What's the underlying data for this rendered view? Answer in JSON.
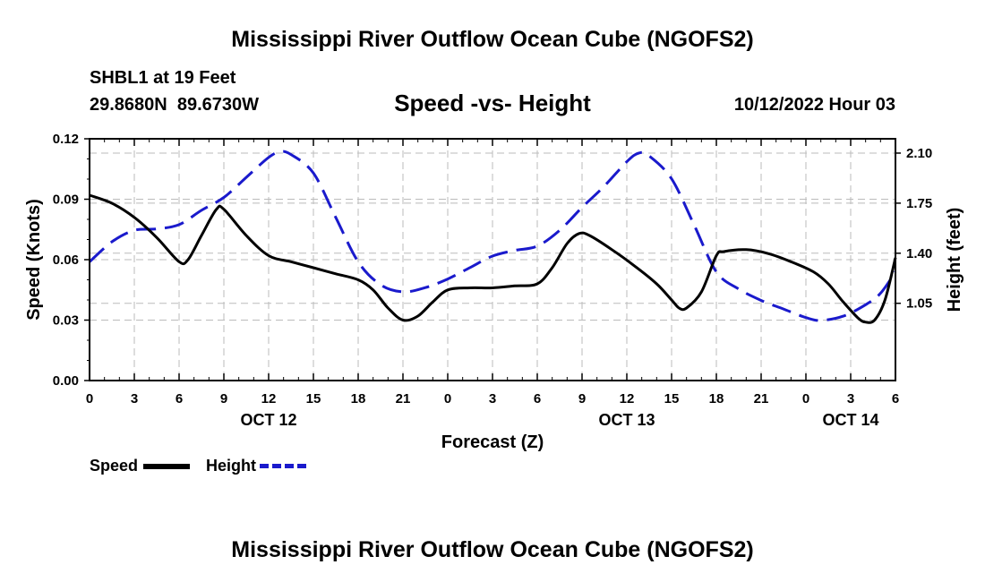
{
  "page": {
    "title_top": "Mississippi River Outflow Ocean Cube (NGOFS2)",
    "title_bottom": "Mississippi River Outflow Ocean Cube (NGOFS2)",
    "station_line": "SHBL1 at 19 Feet",
    "coords_line": "29.8680N  89.6730W",
    "plot_title": "Speed -vs- Height",
    "datetime": "10/12/2022 Hour 03"
  },
  "legend": {
    "speed_label": "Speed",
    "height_label": "Height"
  },
  "colors": {
    "speed": "#000000",
    "height": "#1a1acc",
    "grid": "#bbbbbb"
  },
  "chart_data": {
    "type": "line",
    "xlabel": "Forecast (Z)",
    "ylabel_left": "Speed (Knots)",
    "ylabel_right": "Height (feet)",
    "x_range_hours": [
      0,
      54
    ],
    "x_ticks": [
      {
        "h": 0,
        "label": "0"
      },
      {
        "h": 3,
        "label": "3"
      },
      {
        "h": 6,
        "label": "6"
      },
      {
        "h": 9,
        "label": "9"
      },
      {
        "h": 12,
        "label": "12"
      },
      {
        "h": 15,
        "label": "15"
      },
      {
        "h": 18,
        "label": "18"
      },
      {
        "h": 21,
        "label": "21"
      },
      {
        "h": 24,
        "label": "0"
      },
      {
        "h": 27,
        "label": "3"
      },
      {
        "h": 30,
        "label": "6"
      },
      {
        "h": 33,
        "label": "9"
      },
      {
        "h": 36,
        "label": "12"
      },
      {
        "h": 39,
        "label": "15"
      },
      {
        "h": 42,
        "label": "18"
      },
      {
        "h": 45,
        "label": "21"
      },
      {
        "h": 48,
        "label": "0"
      },
      {
        "h": 51,
        "label": "3"
      },
      {
        "h": 54,
        "label": "6"
      }
    ],
    "date_labels": [
      {
        "h": 12,
        "label": "OCT 12"
      },
      {
        "h": 36,
        "label": "OCT 13"
      },
      {
        "h": 51,
        "label": "OCT 14"
      }
    ],
    "y_left": {
      "range": [
        0,
        0.12
      ],
      "ticks": [
        "0.00",
        "0.03",
        "0.06",
        "0.09",
        "0.12"
      ]
    },
    "y_right": {
      "range": [
        0.51,
        2.2
      ],
      "ticks": [
        "1.05",
        "1.40",
        "1.75",
        "2.10"
      ]
    },
    "series": [
      {
        "name": "Speed",
        "axis": "left",
        "style": "solid",
        "points": [
          [
            0,
            0.092
          ],
          [
            1.5,
            0.088
          ],
          [
            3,
            0.081
          ],
          [
            4.5,
            0.071
          ],
          [
            6,
            0.059
          ],
          [
            6.6,
            0.06
          ],
          [
            7.5,
            0.072
          ],
          [
            8.5,
            0.085
          ],
          [
            9,
            0.085
          ],
          [
            10.5,
            0.072
          ],
          [
            12,
            0.062
          ],
          [
            13.5,
            0.059
          ],
          [
            15,
            0.056
          ],
          [
            16.5,
            0.053
          ],
          [
            18,
            0.05
          ],
          [
            19,
            0.045
          ],
          [
            20,
            0.036
          ],
          [
            21,
            0.03
          ],
          [
            22,
            0.032
          ],
          [
            23,
            0.039
          ],
          [
            24,
            0.045
          ],
          [
            25.5,
            0.046
          ],
          [
            27,
            0.046
          ],
          [
            28.5,
            0.047
          ],
          [
            30,
            0.048
          ],
          [
            31,
            0.056
          ],
          [
            32,
            0.068
          ],
          [
            32.8,
            0.073
          ],
          [
            33.5,
            0.072
          ],
          [
            35,
            0.065
          ],
          [
            36.5,
            0.057
          ],
          [
            38,
            0.048
          ],
          [
            39,
            0.04
          ],
          [
            39.5,
            0.036
          ],
          [
            40,
            0.036
          ],
          [
            41,
            0.044
          ],
          [
            42,
            0.062
          ],
          [
            42.5,
            0.064
          ],
          [
            44,
            0.065
          ],
          [
            45.5,
            0.063
          ],
          [
            47,
            0.059
          ],
          [
            48.5,
            0.054
          ],
          [
            49.5,
            0.048
          ],
          [
            50.5,
            0.039
          ],
          [
            51.5,
            0.031
          ],
          [
            52,
            0.029
          ],
          [
            52.6,
            0.03
          ],
          [
            53.3,
            0.04
          ],
          [
            54,
            0.061
          ]
        ]
      },
      {
        "name": "Height",
        "axis": "right",
        "style": "dashed",
        "points": [
          [
            0,
            1.34
          ],
          [
            1.5,
            1.48
          ],
          [
            3,
            1.56
          ],
          [
            4.5,
            1.57
          ],
          [
            6,
            1.6
          ],
          [
            7.5,
            1.7
          ],
          [
            9,
            1.79
          ],
          [
            10.5,
            1.93
          ],
          [
            12,
            2.07
          ],
          [
            12.8,
            2.11
          ],
          [
            13.5,
            2.09
          ],
          [
            15,
            1.96
          ],
          [
            16.5,
            1.65
          ],
          [
            18,
            1.34
          ],
          [
            19.5,
            1.18
          ],
          [
            21,
            1.13
          ],
          [
            22.5,
            1.16
          ],
          [
            24,
            1.22
          ],
          [
            25.5,
            1.3
          ],
          [
            27,
            1.38
          ],
          [
            28.5,
            1.42
          ],
          [
            30,
            1.45
          ],
          [
            31.5,
            1.56
          ],
          [
            33,
            1.72
          ],
          [
            34.5,
            1.87
          ],
          [
            36,
            2.04
          ],
          [
            36.8,
            2.1
          ],
          [
            37.5,
            2.08
          ],
          [
            39,
            1.92
          ],
          [
            40.5,
            1.6
          ],
          [
            42,
            1.27
          ],
          [
            43.5,
            1.15
          ],
          [
            45,
            1.07
          ],
          [
            46.5,
            1.01
          ],
          [
            48,
            0.95
          ],
          [
            49,
            0.93
          ],
          [
            50.5,
            0.96
          ],
          [
            52,
            1.04
          ],
          [
            53,
            1.12
          ],
          [
            54,
            1.27
          ]
        ]
      }
    ]
  }
}
